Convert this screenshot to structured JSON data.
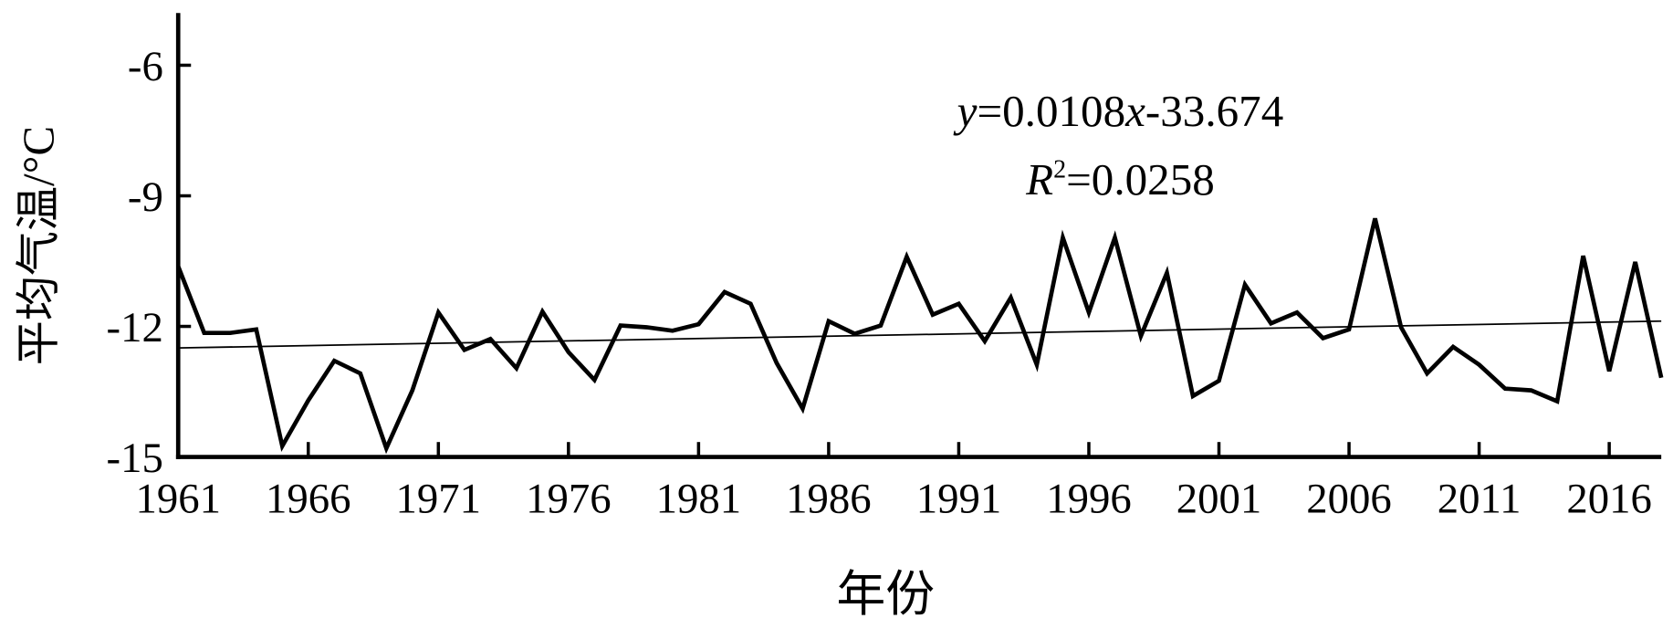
{
  "chart_data": {
    "type": "line",
    "x_label": "年份",
    "y_label": "平均气温/°C",
    "x": [
      1961,
      1962,
      1963,
      1964,
      1965,
      1966,
      1967,
      1968,
      1969,
      1970,
      1971,
      1972,
      1973,
      1974,
      1975,
      1976,
      1977,
      1978,
      1979,
      1980,
      1981,
      1982,
      1983,
      1984,
      1985,
      1986,
      1987,
      1988,
      1989,
      1990,
      1991,
      1992,
      1993,
      1994,
      1995,
      1996,
      1997,
      1998,
      1999,
      2000,
      2001,
      2002,
      2003,
      2004,
      2005,
      2006,
      2007,
      2008,
      2009,
      2010,
      2011,
      2012,
      2013,
      2014,
      2015,
      2016,
      2017,
      2018
    ],
    "values": [
      -10.62,
      -12.15,
      -12.15,
      -12.07,
      -14.75,
      -13.7,
      -12.79,
      -13.08,
      -14.8,
      -13.47,
      -11.68,
      -12.54,
      -12.29,
      -12.96,
      -11.66,
      -12.59,
      -13.23,
      -11.98,
      -12.02,
      -12.1,
      -11.95,
      -11.21,
      -11.48,
      -12.84,
      -13.89,
      -11.88,
      -12.17,
      -11.98,
      -10.4,
      -11.73,
      -11.48,
      -12.34,
      -11.34,
      -12.88,
      -9.96,
      -11.68,
      -9.96,
      -12.22,
      -10.77,
      -13.6,
      -13.25,
      -11.04,
      -11.93,
      -11.68,
      -12.27,
      -12.07,
      -9.52,
      -12.02,
      -13.08,
      -12.47,
      -12.88,
      -13.43,
      -13.47,
      -13.72,
      -10.38,
      -13.03,
      -10.52,
      -13.18
    ],
    "color": "#000000",
    "xlim": [
      1961,
      2018
    ],
    "xticks": [
      1961,
      1966,
      1971,
      1976,
      1981,
      1986,
      1991,
      1996,
      2001,
      2006,
      2011,
      2016
    ],
    "ylim": [
      -15,
      -4.8
    ],
    "yticks": [
      -15,
      -12,
      -9,
      -6
    ],
    "trendline": {
      "slope": 0.0108,
      "intercept": -33.674
    },
    "equation": [
      "y",
      "=0.0108",
      "x",
      "-33.674"
    ],
    "r_squared": [
      "R",
      "2",
      "=0.0258"
    ]
  }
}
